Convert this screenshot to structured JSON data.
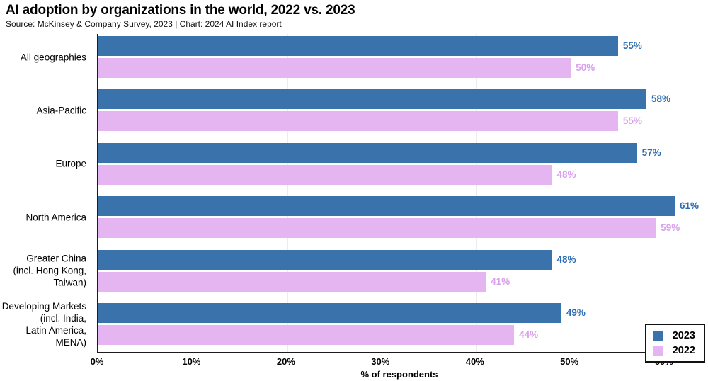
{
  "chart_data": {
    "type": "bar",
    "orientation": "horizontal",
    "title": "AI adoption by organizations in the world, 2022 vs. 2023",
    "source": "Source: McKinsey & Company Survey, 2023 | Chart: 2024 AI Index report",
    "xlabel": "% of respondents",
    "value_suffix": "%",
    "xlim": [
      0,
      64
    ],
    "grid": "vertical",
    "legend_position": "bottom-right",
    "x_ticks": [
      {
        "value": 0,
        "label": "0%"
      },
      {
        "value": 10,
        "label": "10%"
      },
      {
        "value": 20,
        "label": "20%"
      },
      {
        "value": 30,
        "label": "30%"
      },
      {
        "value": 40,
        "label": "40%"
      },
      {
        "value": 50,
        "label": "50%"
      },
      {
        "value": 60,
        "label": "60%"
      }
    ],
    "categories": [
      {
        "name": "All geographies",
        "lines": [
          "All geographies"
        ]
      },
      {
        "name": "Asia-Pacific",
        "lines": [
          "Asia-Pacific"
        ]
      },
      {
        "name": "Europe",
        "lines": [
          "Europe"
        ]
      },
      {
        "name": "North America",
        "lines": [
          "North America"
        ]
      },
      {
        "name": "Greater China (incl. Hong Kong, Taiwan)",
        "lines": [
          "Greater China",
          "(incl. Hong Kong,",
          "Taiwan)"
        ]
      },
      {
        "name": "Developing Markets (incl. India, Latin America, MENA)",
        "lines": [
          "Developing Markets",
          "(incl. India,",
          "Latin America,",
          "MENA)"
        ]
      }
    ],
    "series": [
      {
        "name": "2023",
        "color": "#3A72AC",
        "label_color": "#2B6CB4",
        "values": [
          55,
          58,
          57,
          61,
          48,
          49
        ]
      },
      {
        "name": "2022",
        "color": "#E5B5F2",
        "label_color": "#D9A0ED",
        "values": [
          50,
          55,
          48,
          59,
          41,
          44
        ]
      }
    ],
    "colors": {
      "axis": "#1c1c1c",
      "gridline": "#ececec",
      "background": "#ffffff",
      "legend_border": "#111111"
    }
  }
}
